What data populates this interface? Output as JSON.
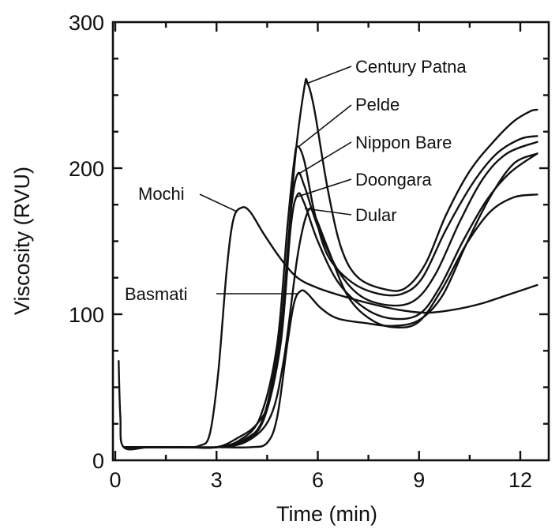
{
  "chart_data": {
    "type": "line",
    "title": "",
    "xlabel": "Time (min)",
    "ylabel": "Viscosity (RVU)",
    "xlim": [
      0,
      12.8
    ],
    "ylim": [
      0,
      300
    ],
    "xticks": [
      0,
      3,
      6,
      9,
      12
    ],
    "yticks": [
      0,
      100,
      200,
      300
    ],
    "grid": false,
    "legend": "none",
    "series": [
      {
        "name": "Century Patna",
        "points": [
          [
            0.1,
            68
          ],
          [
            0.15,
            30
          ],
          [
            0.25,
            9
          ],
          [
            1,
            9
          ],
          [
            2,
            9
          ],
          [
            3,
            9
          ],
          [
            3.6,
            15
          ],
          [
            4.2,
            25
          ],
          [
            4.6,
            45
          ],
          [
            5,
            110
          ],
          [
            5.3,
            200
          ],
          [
            5.6,
            255
          ],
          [
            5.7,
            258
          ],
          [
            5.9,
            240
          ],
          [
            6.3,
            185
          ],
          [
            6.7,
            145
          ],
          [
            7.2,
            125
          ],
          [
            8,
            117
          ],
          [
            8.6,
            118
          ],
          [
            9.2,
            135
          ],
          [
            9.8,
            168
          ],
          [
            10.5,
            198
          ],
          [
            11.2,
            218
          ],
          [
            11.8,
            232
          ],
          [
            12.3,
            239
          ],
          [
            12.5,
            240
          ]
        ]
      },
      {
        "name": "Pelde",
        "points": [
          [
            0.25,
            9
          ],
          [
            1,
            9
          ],
          [
            2,
            9
          ],
          [
            3,
            9
          ],
          [
            3.7,
            14
          ],
          [
            4.3,
            30
          ],
          [
            4.8,
            80
          ],
          [
            5.1,
            160
          ],
          [
            5.3,
            205
          ],
          [
            5.4,
            215
          ],
          [
            5.6,
            205
          ],
          [
            5.9,
            170
          ],
          [
            6.3,
            140
          ],
          [
            7,
            122
          ],
          [
            7.8,
            114
          ],
          [
            8.5,
            114
          ],
          [
            9.1,
            125
          ],
          [
            9.8,
            158
          ],
          [
            10.6,
            190
          ],
          [
            11.3,
            210
          ],
          [
            12,
            220
          ],
          [
            12.5,
            222
          ]
        ]
      },
      {
        "name": "Nippon Bare",
        "points": [
          [
            0.25,
            9
          ],
          [
            1,
            9
          ],
          [
            2,
            9
          ],
          [
            3,
            9
          ],
          [
            3.8,
            14
          ],
          [
            4.4,
            30
          ],
          [
            4.9,
            90
          ],
          [
            5.2,
            170
          ],
          [
            5.4,
            196
          ],
          [
            5.6,
            188
          ],
          [
            6,
            160
          ],
          [
            6.6,
            130
          ],
          [
            7.3,
            112
          ],
          [
            8.2,
            106
          ],
          [
            8.9,
            110
          ],
          [
            9.5,
            128
          ],
          [
            10.2,
            163
          ],
          [
            10.9,
            193
          ],
          [
            11.6,
            210
          ],
          [
            12.5,
            218
          ]
        ]
      },
      {
        "name": "Doongara",
        "points": [
          [
            0.25,
            9
          ],
          [
            1,
            9
          ],
          [
            2,
            9
          ],
          [
            3,
            9
          ],
          [
            3.8,
            13
          ],
          [
            4.4,
            28
          ],
          [
            4.9,
            80
          ],
          [
            5.2,
            160
          ],
          [
            5.4,
            182
          ],
          [
            5.6,
            176
          ],
          [
            6,
            150
          ],
          [
            6.6,
            122
          ],
          [
            7.4,
            104
          ],
          [
            8.2,
            97
          ],
          [
            9,
            100
          ],
          [
            9.6,
            118
          ],
          [
            10.3,
            150
          ],
          [
            11,
            178
          ],
          [
            11.7,
            197
          ],
          [
            12.5,
            210
          ]
        ]
      },
      {
        "name": "Dular",
        "points": [
          [
            0.25,
            9
          ],
          [
            1,
            9
          ],
          [
            2,
            9
          ],
          [
            3,
            9
          ],
          [
            3.9,
            13
          ],
          [
            4.6,
            30
          ],
          [
            5,
            70
          ],
          [
            5.4,
            140
          ],
          [
            5.7,
            170
          ],
          [
            5.9,
            168
          ],
          [
            6.3,
            145
          ],
          [
            6.9,
            112
          ],
          [
            7.6,
            96
          ],
          [
            8.3,
            91
          ],
          [
            9,
            95
          ],
          [
            9.7,
            118
          ],
          [
            10.4,
            148
          ],
          [
            11.1,
            170
          ],
          [
            11.8,
            180
          ],
          [
            12.5,
            182
          ]
        ]
      },
      {
        "name": "Mochi",
        "points": [
          [
            0.25,
            9
          ],
          [
            1,
            9
          ],
          [
            2,
            9
          ],
          [
            2.5,
            10
          ],
          [
            2.8,
            18
          ],
          [
            3.05,
            60
          ],
          [
            3.3,
            130
          ],
          [
            3.5,
            165
          ],
          [
            3.75,
            173
          ],
          [
            4,
            170
          ],
          [
            4.4,
            155
          ],
          [
            4.9,
            138
          ],
          [
            5.4,
            125
          ],
          [
            6,
            118
          ],
          [
            6.8,
            112
          ],
          [
            7.6,
            107
          ],
          [
            8.4,
            103
          ],
          [
            9.2,
            101
          ],
          [
            10,
            103
          ],
          [
            10.8,
            107
          ],
          [
            11.6,
            113
          ],
          [
            12.5,
            120
          ]
        ]
      },
      {
        "name": "Basmati",
        "points": [
          [
            0.25,
            9
          ],
          [
            1,
            9
          ],
          [
            2,
            9
          ],
          [
            3,
            9
          ],
          [
            4,
            9
          ],
          [
            4.5,
            12
          ],
          [
            4.8,
            30
          ],
          [
            5.1,
            80
          ],
          [
            5.3,
            108
          ],
          [
            5.5,
            116
          ],
          [
            5.7,
            114
          ],
          [
            6.1,
            104
          ],
          [
            6.6,
            97
          ],
          [
            7.4,
            94
          ],
          [
            8.2,
            92
          ],
          [
            9,
            96
          ],
          [
            9.7,
            113
          ],
          [
            10.4,
            148
          ],
          [
            11.1,
            180
          ],
          [
            11.8,
            203
          ],
          [
            12.5,
            210
          ]
        ]
      }
    ],
    "annotations": [
      {
        "text": "Century Patna",
        "series": "Century Patna"
      },
      {
        "text": "Pelde",
        "series": "Pelde"
      },
      {
        "text": "Nippon Bare",
        "series": "Nippon Bare"
      },
      {
        "text": "Doongara",
        "series": "Doongara"
      },
      {
        "text": "Dular",
        "series": "Dular"
      },
      {
        "text": "Mochi",
        "series": "Mochi"
      },
      {
        "text": "Basmati",
        "series": "Basmati"
      }
    ]
  }
}
